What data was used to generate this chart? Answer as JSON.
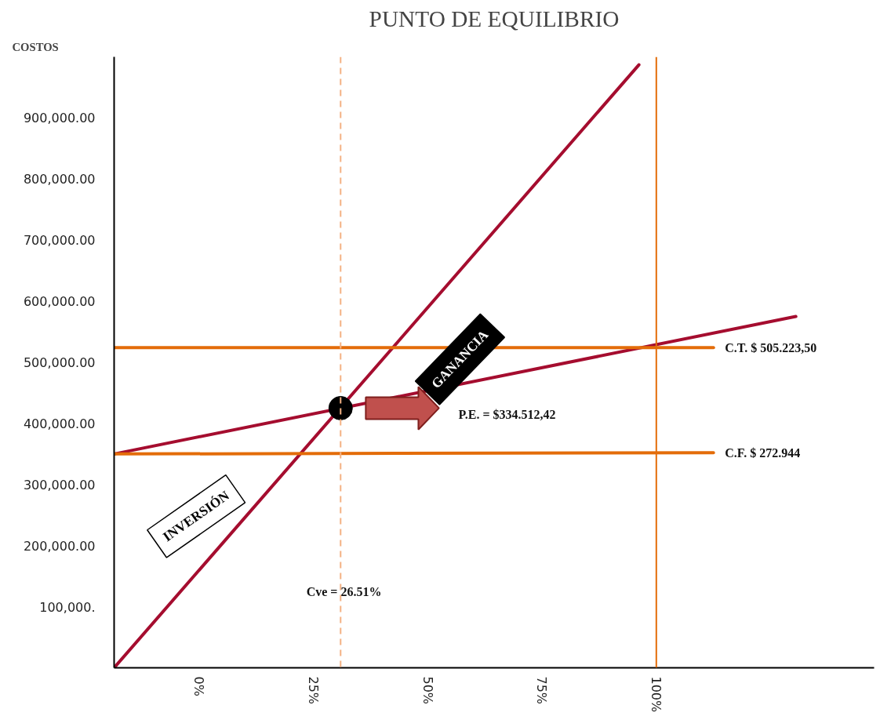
{
  "chart_data": {
    "type": "line",
    "title": "PUNTO DE EQUILIBRIO",
    "ylabel": "COSTOS",
    "xlim": [
      -18.5,
      147.6
    ],
    "ylim": [
      0,
      1000000
    ],
    "xticks": [
      {
        "value": 0,
        "label": "0%"
      },
      {
        "value": 25,
        "label": "25%"
      },
      {
        "value": 50,
        "label": "50%"
      },
      {
        "value": 75,
        "label": "75%"
      },
      {
        "value": 100,
        "label": "100%"
      }
    ],
    "yticks": [
      {
        "value": 100000,
        "label": "100,000."
      },
      {
        "value": 200000,
        "label": "200,000.00"
      },
      {
        "value": 300000,
        "label": "300,000.00"
      },
      {
        "value": 400000,
        "label": "400,000.00"
      },
      {
        "value": 500000,
        "label": "500,000.00"
      },
      {
        "value": 600000,
        "label": "600,000.00"
      },
      {
        "value": 700000,
        "label": "700,000.00"
      },
      {
        "value": 800000,
        "label": "800,000.00"
      },
      {
        "value": 900000,
        "label": "900,000.00"
      }
    ],
    "grid": false,
    "series": [
      {
        "color": "#a50d2f",
        "x": [
          -18.5,
          96.2
        ],
        "values": [
          0,
          987000
        ]
      },
      {
        "color": "#a50d2f",
        "x": [
          -18.5,
          130.5
        ],
        "values": [
          350000,
          575000
        ]
      },
      {
        "color": "#e36c09",
        "x": [
          -18.5,
          112.5
        ],
        "values": [
          350000,
          352000
        ]
      },
      {
        "color": "#e36c09",
        "x": [
          -18.5,
          112.5
        ],
        "values": [
          524000,
          524000
        ]
      },
      {
        "type": "scatter",
        "marker": "circle",
        "color": "#000000",
        "x": [
          31
        ],
        "values": [
          425000
        ]
      }
    ],
    "ref_lines": [
      {
        "axis": "x",
        "value": 31,
        "color": "#f4b183",
        "line_style": "dashed"
      },
      {
        "axis": "x",
        "value": 100,
        "color": "#e36c09",
        "line_style": "solid"
      }
    ],
    "annotations": [
      "C.T.   $ 505.223,50",
      "C.F.   $ 272.944",
      "P.E. = $334.512,42",
      "Cve   = 26.51%",
      "GANANCIA",
      "INVERSIÓN"
    ]
  }
}
